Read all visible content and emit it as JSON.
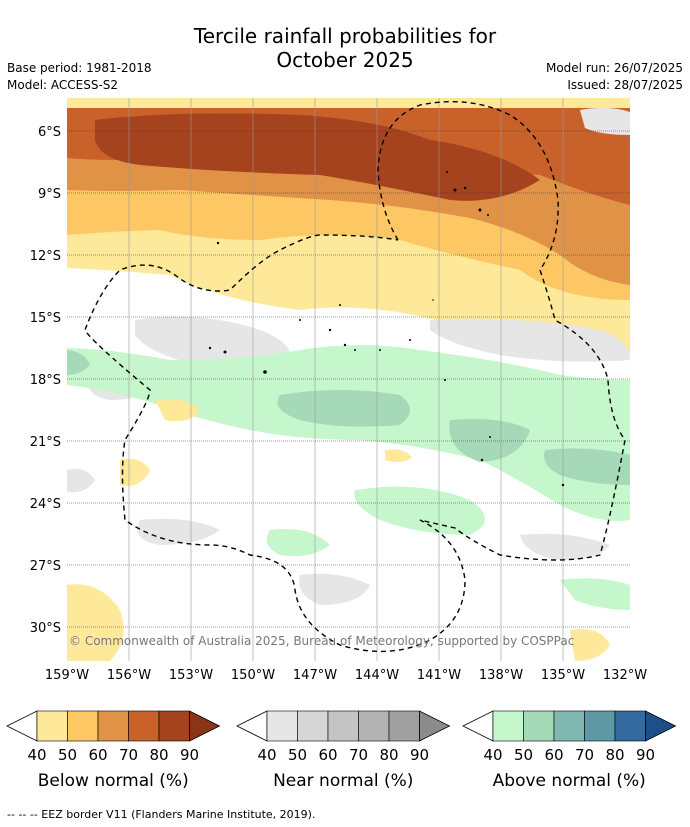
{
  "title_line1": "Tercile rainfall probabilities for",
  "title_line2": "October 2025",
  "base_period": "Base period: 1981-2018",
  "model": "Model: ACCESS-S2",
  "model_run": "Model run: 26/07/2025",
  "issued": "Issued: 28/07/2025",
  "copyright": "© Commonwealth of Australia 2025, Bureau of Meteorology, supported by COSPPac",
  "lat_labels": [
    "6°S",
    "9°S",
    "12°S",
    "15°S",
    "18°S",
    "21°S",
    "24°S",
    "27°S",
    "30°S"
  ],
  "lon_labels": [
    "159°W",
    "156°W",
    "153°W",
    "150°W",
    "147°W",
    "144°W",
    "141°W",
    "138°W",
    "135°W",
    "132°W"
  ],
  "legends": [
    {
      "name": "Below normal (%)",
      "colors": [
        "#fee99a",
        "#fdc864",
        "#e09347",
        "#c9612b",
        "#a6431f",
        "#8b3518"
      ],
      "ticks": [
        "40",
        "50",
        "60",
        "70",
        "80",
        "90"
      ]
    },
    {
      "name": "Near normal (%)",
      "colors": [
        "#e6e6e6",
        "#d6d6d6",
        "#c4c4c4",
        "#b3b3b3",
        "#a0a0a0",
        "#8c8c8c"
      ],
      "ticks": [
        "40",
        "50",
        "60",
        "70",
        "80",
        "90"
      ]
    },
    {
      "name": "Above normal (%)",
      "colors": [
        "#c6f7cc",
        "#a6d9b8",
        "#7fb8b1",
        "#5e98a3",
        "#346a9e",
        "#1f4f8a"
      ],
      "ticks": [
        "40",
        "50",
        "60",
        "70",
        "80",
        "90"
      ]
    }
  ],
  "footnote": "-- -- -- EEZ border V11 (Flanders Marine Institute, 2019)."
}
